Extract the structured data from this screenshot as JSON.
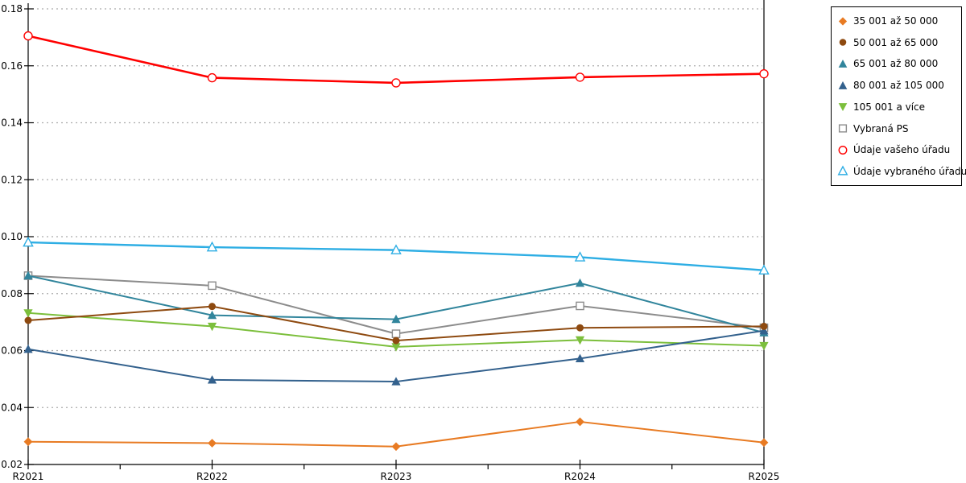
{
  "chart_data": {
    "type": "line",
    "title": "",
    "xlabel": "",
    "ylabel": "",
    "categories": [
      "R2021",
      "R2022",
      "R2023",
      "R2024",
      "R2025"
    ],
    "ylim": [
      0.02,
      0.18
    ],
    "ytick_step": 0.02,
    "grid": true,
    "gridline_style": "dotted",
    "legend_position": "right-outside",
    "series": [
      {
        "name": "35 001 až 50 000",
        "color": "#E87B23",
        "marker": "diamond",
        "fill": "solid",
        "line_width": 2,
        "values": [
          0.028,
          0.0275,
          0.0263,
          0.035,
          0.0277
        ]
      },
      {
        "name": "50 001 až 65 000",
        "color": "#8E4A10",
        "marker": "circle",
        "fill": "solid",
        "line_width": 2,
        "values": [
          0.0706,
          0.0755,
          0.0635,
          0.068,
          0.0685
        ]
      },
      {
        "name": "65 001 až 80 000",
        "color": "#31859C",
        "marker": "triangle-up",
        "fill": "solid",
        "line_width": 2,
        "values": [
          0.0863,
          0.0724,
          0.071,
          0.0837,
          0.0663
        ]
      },
      {
        "name": "80 001 až 105 000",
        "color": "#33618D",
        "marker": "triangle-up",
        "fill": "solid",
        "line_width": 2,
        "values": [
          0.0605,
          0.0497,
          0.0491,
          0.0572,
          0.067
        ]
      },
      {
        "name": "105 001 a více",
        "color": "#7CBF3C",
        "marker": "triangle-down",
        "fill": "solid",
        "line_width": 2,
        "values": [
          0.0732,
          0.0685,
          0.0613,
          0.0637,
          0.0617
        ]
      },
      {
        "name": "Vybraná PS",
        "color": "#8C8C8C",
        "marker": "square",
        "fill": "open",
        "line_width": 2,
        "values": [
          0.0863,
          0.0828,
          0.0659,
          0.0757,
          0.068
        ]
      },
      {
        "name": "Údaje vašeho úřadu",
        "color": "#FF0000",
        "marker": "circle",
        "fill": "open",
        "line_width": 2.6,
        "values": [
          0.1705,
          0.1558,
          0.154,
          0.156,
          0.1572
        ]
      },
      {
        "name": "Údaje vybraného úřadu",
        "color": "#2EAEE4",
        "marker": "triangle-up",
        "fill": "open",
        "line_width": 2.4,
        "values": [
          0.098,
          0.0963,
          0.0953,
          0.0928,
          0.0882
        ]
      }
    ],
    "draw_order": [
      5,
      4,
      2,
      3,
      1,
      0,
      7,
      6
    ]
  }
}
